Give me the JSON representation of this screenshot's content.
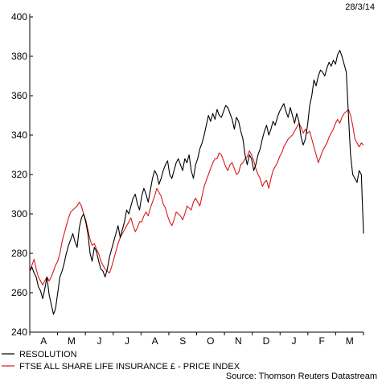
{
  "date_label": "28/3/14",
  "source": "Source: Thomson Reuters Datastream",
  "colors": {
    "resolution": "#000000",
    "ftse": "#d7191c"
  },
  "chart_data": {
    "type": "line",
    "ylim": [
      240,
      400
    ],
    "yticks": [
      240,
      260,
      280,
      300,
      320,
      340,
      360,
      380,
      400
    ],
    "month_labels": [
      "A",
      "M",
      "J",
      "J",
      "A",
      "S",
      "O",
      "N",
      "D",
      "J",
      "F",
      "M"
    ],
    "grid": false,
    "legend": "bottom-left",
    "series": [
      {
        "name": "RESOLUTION",
        "values": [
          271,
          273,
          270,
          268,
          263,
          261,
          257,
          262,
          268,
          259,
          254,
          249,
          252,
          260,
          268,
          271,
          275,
          280,
          284,
          287,
          290,
          286,
          283,
          293,
          298,
          300,
          296,
          290,
          280,
          276,
          283,
          281,
          276,
          272,
          271,
          268,
          272,
          278,
          282,
          286,
          290,
          294,
          288,
          292,
          296,
          302,
          300,
          304,
          308,
          310,
          305,
          302,
          309,
          313,
          310,
          306,
          312,
          318,
          322,
          320,
          315,
          318,
          322,
          325,
          327,
          320,
          318,
          322,
          326,
          328,
          325,
          322,
          328,
          326,
          330,
          322,
          318,
          325,
          328,
          333,
          336,
          340,
          345,
          350,
          347,
          351,
          348,
          353,
          350,
          349,
          352,
          355,
          354,
          351,
          348,
          343,
          349,
          347,
          342,
          338,
          330,
          325,
          330,
          328,
          322,
          325,
          330,
          333,
          338,
          342,
          345,
          340,
          343,
          347,
          345,
          349,
          352,
          354,
          356,
          352,
          349,
          354,
          350,
          346,
          351,
          347,
          339,
          335,
          338,
          345,
          355,
          360,
          368,
          365,
          370,
          373,
          372,
          370,
          374,
          377,
          375,
          378,
          376,
          381,
          383,
          380,
          376,
          372,
          350,
          330,
          320,
          318,
          316,
          322,
          320,
          290
        ],
        "color": "#000000"
      },
      {
        "name": "FTSE ALL SHARE LIFE INSURANCE £ - PRICE INDEX",
        "values": [
          271,
          274,
          277,
          272,
          268,
          266,
          264,
          266,
          268,
          266,
          268,
          271,
          274,
          276,
          280,
          286,
          290,
          294,
          298,
          301,
          302,
          303,
          304,
          306,
          304,
          300,
          297,
          292,
          287,
          284,
          285,
          282,
          280,
          276,
          274,
          272,
          271,
          270,
          273,
          277,
          281,
          285,
          288,
          290,
          292,
          294,
          296,
          298,
          294,
          291,
          293,
          296,
          296,
          299,
          301,
          299,
          303,
          306,
          309,
          313,
          311,
          309,
          305,
          303,
          299,
          296,
          294,
          297,
          301,
          300,
          299,
          297,
          300,
          304,
          303,
          302,
          306,
          308,
          306,
          304,
          309,
          314,
          317,
          320,
          323,
          326,
          328,
          328,
          331,
          330,
          327,
          324,
          322,
          325,
          326,
          323,
          320,
          321,
          325,
          326,
          328,
          329,
          332,
          330,
          327,
          323,
          320,
          318,
          314,
          316,
          317,
          313,
          318,
          322,
          324,
          326,
          329,
          331,
          334,
          336,
          338,
          339,
          340,
          342,
          344,
          346,
          344,
          341,
          343,
          341,
          342,
          338,
          334,
          330,
          326,
          329,
          332,
          334,
          336,
          339,
          341,
          343,
          346,
          348,
          346,
          349,
          351,
          352,
          353,
          350,
          345,
          338,
          336,
          334,
          336,
          335
        ],
        "color": "#d7191c"
      }
    ]
  }
}
